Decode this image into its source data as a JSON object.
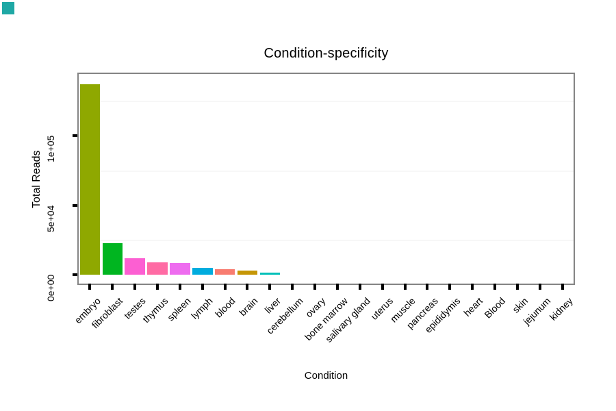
{
  "corner_marker": {
    "color": "#1FA8A5"
  },
  "chart_data": {
    "type": "bar",
    "title": "Condition-specificity",
    "xlabel": "Condition",
    "ylabel": "Total Reads",
    "categories": [
      "embryo",
      "fibroblast",
      "testes",
      "thymus",
      "spleen",
      "lymph",
      "blood",
      "brain",
      "liver",
      "cerebellum",
      "ovary",
      "bone marrow",
      "salivary gland",
      "uterus",
      "muscle",
      "pancreas",
      "epididymis",
      "heart",
      "Blood",
      "skin",
      "jejunum",
      "kidney"
    ],
    "values": [
      137000,
      22500,
      12000,
      8700,
      8300,
      4700,
      3800,
      3100,
      1500,
      0,
      0,
      0,
      0,
      0,
      0,
      0,
      0,
      0,
      0,
      0,
      0,
      0
    ],
    "bar_colors": [
      "#8FA800",
      "#00B520",
      "#FC5FD2",
      "#FF6BA4",
      "#EE6CEF",
      "#00ACDE",
      "#F87C70",
      "#C59606",
      "#00BFB8",
      null,
      null,
      null,
      null,
      null,
      null,
      null,
      null,
      null,
      null,
      null,
      null,
      null
    ],
    "y_ticks": [
      {
        "value": 0,
        "label": "0e+00"
      },
      {
        "value": 50000,
        "label": "5e+04"
      },
      {
        "value": 100000,
        "label": "1e+05"
      }
    ],
    "ylim": [
      0,
      143800
    ],
    "minor_gridlines": [
      25000,
      75000,
      125000
    ],
    "grid": "minor-horizontal-only",
    "legend": "none",
    "bar_width_fraction": 0.9,
    "panel_border_color": "#848484",
    "minor_grid_color": "#f7f7f7",
    "tick_color": "#000000",
    "text_color": "#000000",
    "x_tick_label_angle": 45,
    "y_tick_label_angle": 90
  }
}
